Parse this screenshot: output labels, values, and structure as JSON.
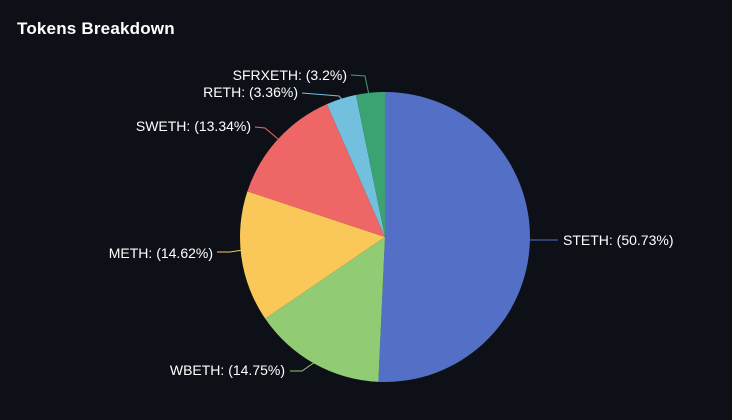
{
  "title": "Tokens Breakdown",
  "chart_data": {
    "type": "pie",
    "title": "Tokens Breakdown",
    "categories": [
      "STETH",
      "WBETH",
      "METH",
      "SWETH",
      "RETH",
      "SFRXETH"
    ],
    "values": [
      50.73,
      14.75,
      14.62,
      13.34,
      3.36,
      3.2
    ],
    "unit": "%",
    "slice_labels": [
      "STETH: (50.73%)",
      "WBETH: (14.75%)",
      "METH: (14.62%)",
      "SWETH: (13.34%)",
      "RETH: (3.36%)",
      "SFRXETH: (3.2%)"
    ],
    "colors": [
      "#5470c6",
      "#91cc75",
      "#fac858",
      "#ee6666",
      "#73c0de",
      "#3ba272"
    ],
    "start_angle_deg": 90,
    "direction": "clockwise",
    "legend": false,
    "background_color": "#0d1117",
    "label_text_color": "#ffffff"
  }
}
